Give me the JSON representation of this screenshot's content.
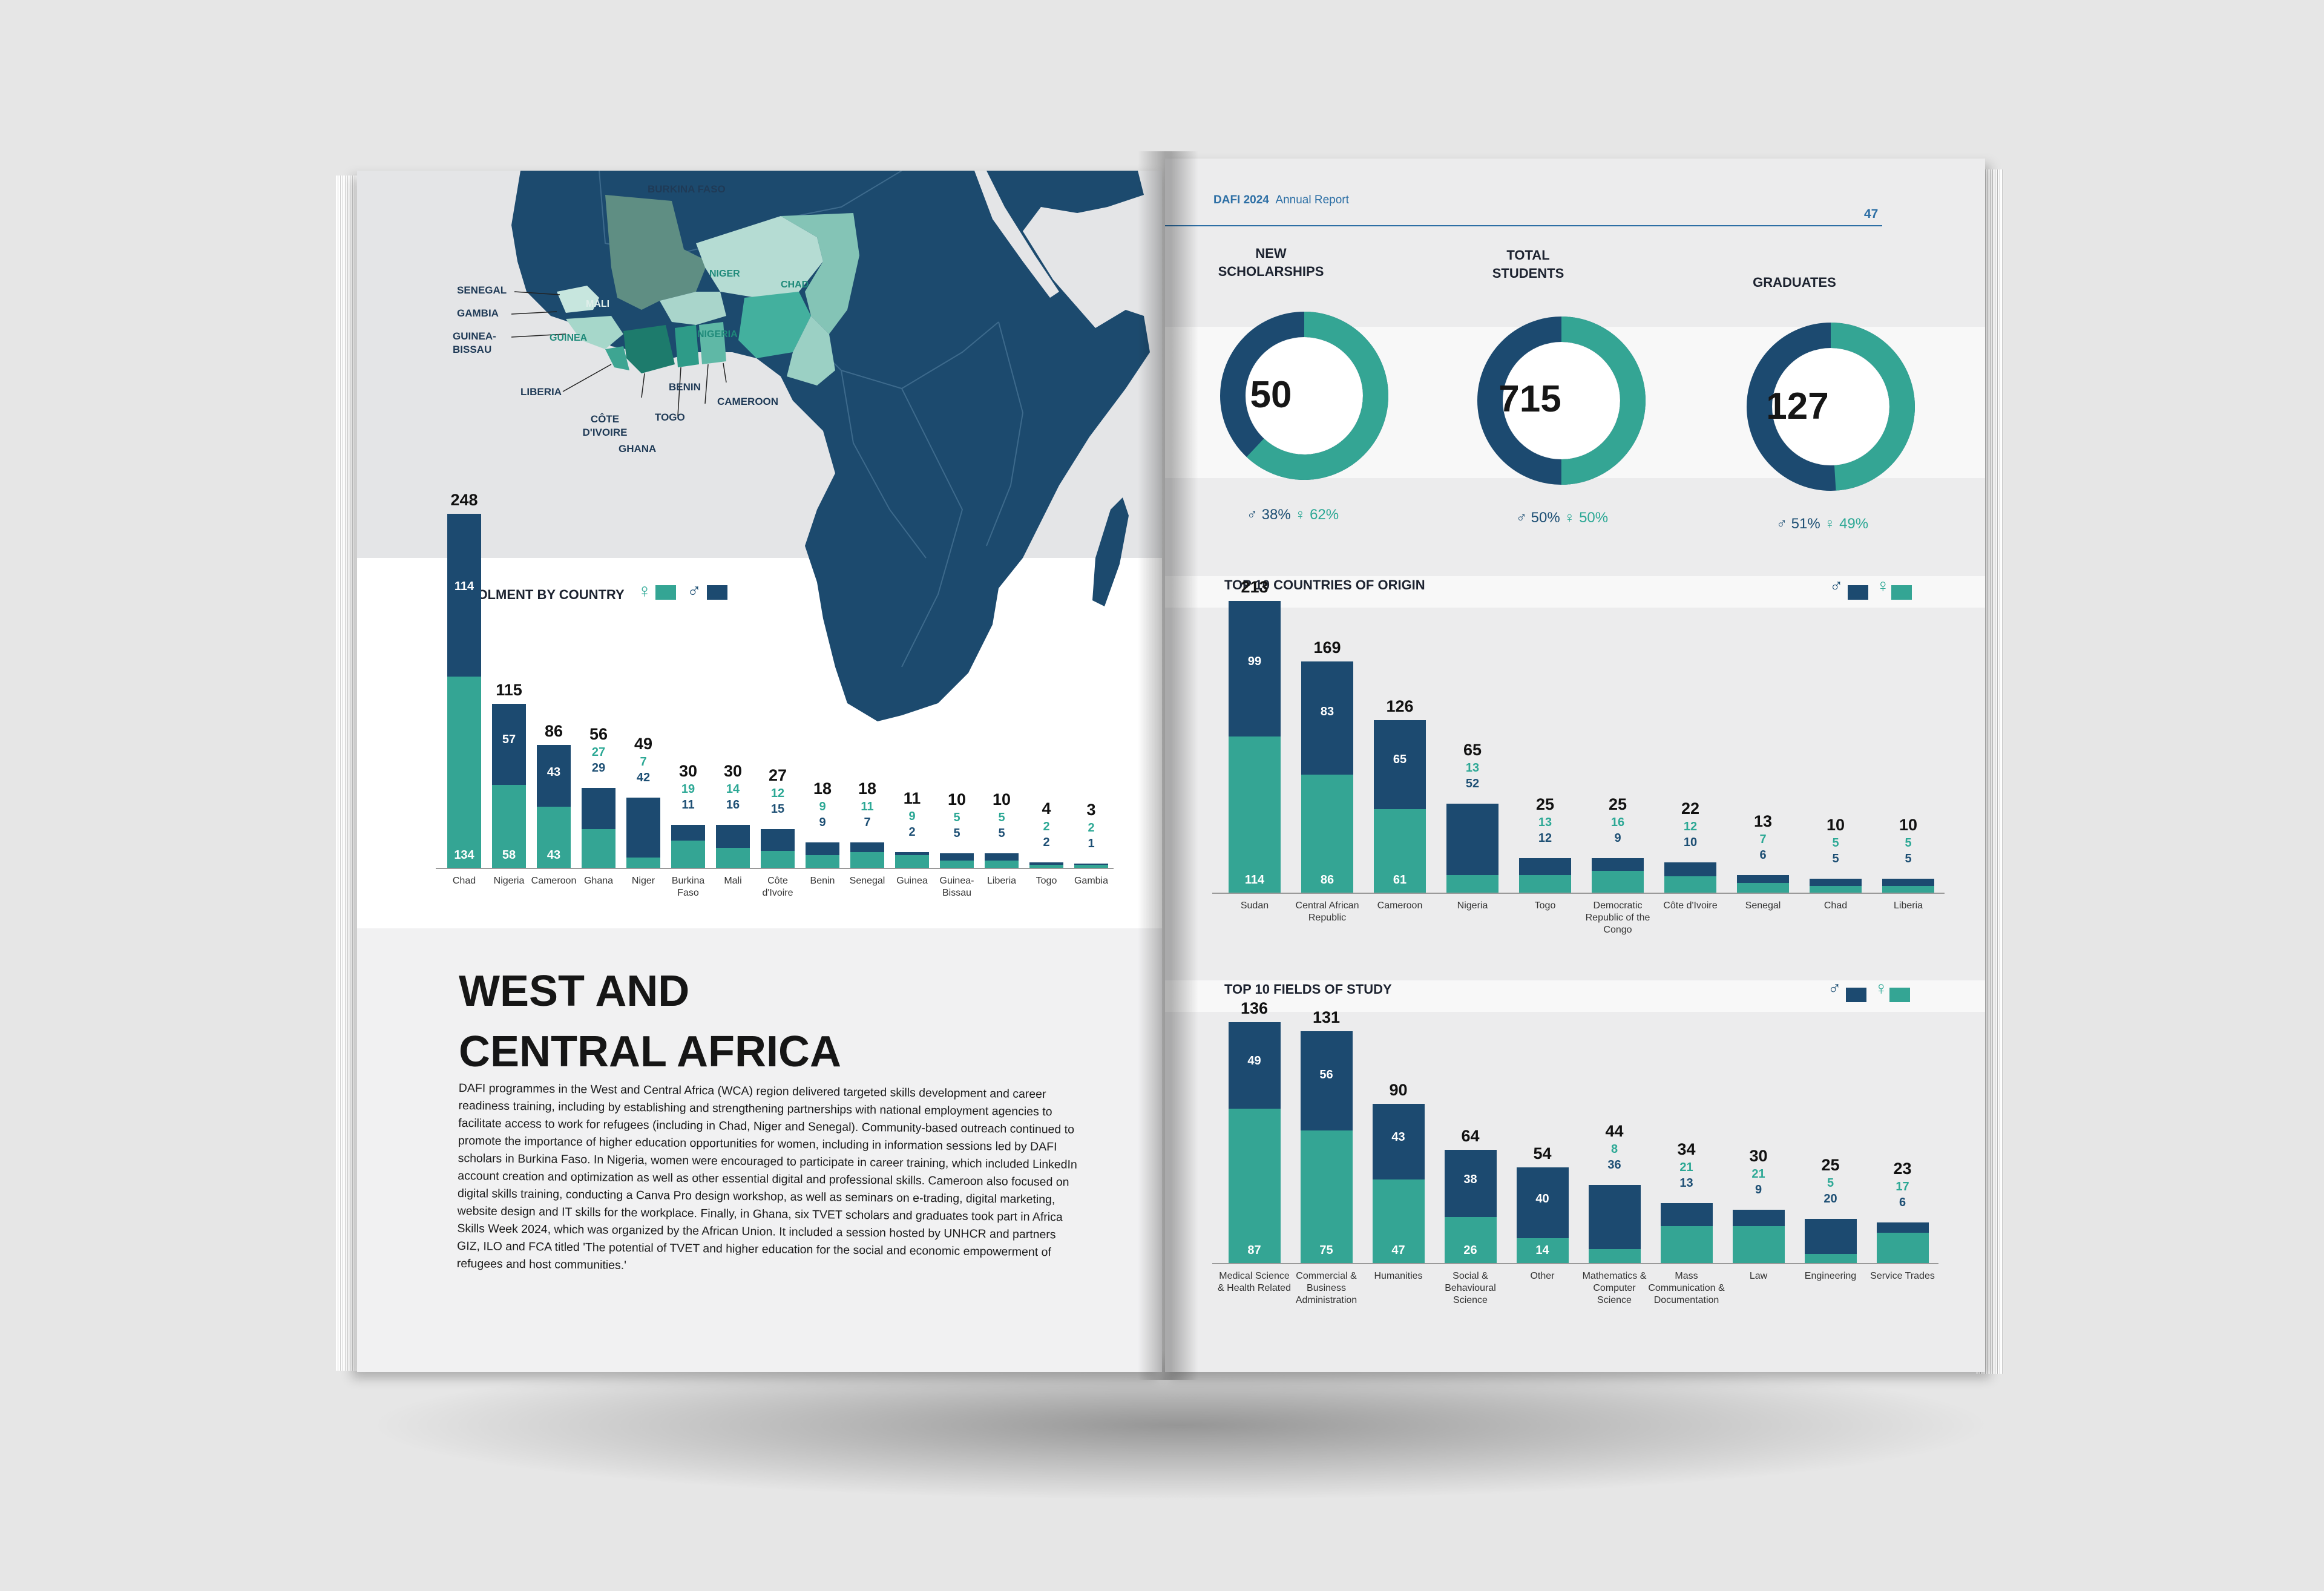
{
  "colors": {
    "navy": "#1c4a70",
    "teal": "#34a594",
    "map_ocean_bg": "#e4e5e7"
  },
  "map": {
    "labels": [
      "BURKINA FASO",
      "SENEGAL",
      "GAMBIA",
      "GUINEA-BISSAU",
      "LIBERIA",
      "CÔTE D'IVOIRE",
      "GHANA",
      "TOGO",
      "BENIN",
      "CAMEROON"
    ],
    "in_map_labels": [
      "MALI",
      "NIGER",
      "CHAD",
      "NIGERIA",
      "GUINEA"
    ]
  },
  "enrolment": {
    "title": "ENROLMENT BY COUNTRY",
    "legend": {
      "female_symbol": "♀",
      "male_symbol": "♂"
    }
  },
  "heading": {
    "line1": "WEST AND",
    "line2": "CENTRAL AFRICA"
  },
  "body_text": "DAFI programmes in the West and Central Africa (WCA) region delivered targeted skills development and career readiness training, including by establishing and strengthening partnerships with national employment agencies to facilitate access to work for refugees (including in Chad, Niger and Senegal). Community-based outreach continued to promote the importance of higher education opportunities for women, including in information sessions led by DAFI scholars in Burkina Faso. In Nigeria, women were encouraged to participate in career training, which included LinkedIn account creation and optimization as well as other essential digital and professional skills. Cameroon also focused on digital skills training, conducting a Canva Pro design workshop, as well as seminars on e-trading, digital marketing, website design and IT skills for the workplace. Finally, in Ghana, six TVET scholars and graduates took part in Africa Skills Week 2024, which was organized by the African Union. It included a session hosted by UNHCR and partners GIZ, ILO and FCA titled 'The potential of TVET and higher education for the social and economic empowerment of refugees and host communities.'",
  "header": {
    "brand": "DAFI 2024",
    "report": "Annual Report",
    "page_number": "47"
  },
  "stats": [
    {
      "title_line1": "NEW",
      "title_line2": "SCHOLARSHIPS",
      "value": "50",
      "male_pct": "38%",
      "female_pct": "62%",
      "male": 0.38,
      "female": 0.62
    },
    {
      "title_line1": "TOTAL",
      "title_line2": "STUDENTS",
      "value": "715",
      "male_pct": "50%",
      "female_pct": "50%",
      "male": 0.5,
      "female": 0.5
    },
    {
      "title_line1": "",
      "title_line2": "GRADUATES",
      "value": "127",
      "male_pct": "51%",
      "female_pct": "49%",
      "male": 0.51,
      "female": 0.49
    }
  ],
  "origin": {
    "title": "TOP 10 COUNTRIES OF ORIGIN"
  },
  "fields": {
    "title": "TOP 10 FIELDS OF STUDY"
  },
  "chart_data": [
    {
      "type": "bar",
      "title": "ENROLMENT BY COUNTRY",
      "stacked": true,
      "categories": [
        "Chad",
        "Nigeria",
        "Cameroon",
        "Ghana",
        "Niger",
        "Burkina Faso",
        "Mali",
        "Côte d'Ivoire",
        "Benin",
        "Senegal",
        "Guinea",
        "Guinea-Bissau",
        "Liberia",
        "Togo",
        "Gambia"
      ],
      "totals": [
        248,
        115,
        86,
        56,
        49,
        30,
        30,
        27,
        18,
        18,
        11,
        10,
        10,
        4,
        3
      ],
      "series": [
        {
          "name": "Female",
          "values": [
            134,
            58,
            43,
            27,
            7,
            19,
            14,
            12,
            9,
            11,
            9,
            5,
            5,
            2,
            2
          ]
        },
        {
          "name": "Male",
          "values": [
            114,
            57,
            43,
            29,
            42,
            11,
            16,
            15,
            9,
            7,
            2,
            5,
            5,
            2,
            1
          ]
        }
      ],
      "ylim": [
        0,
        248
      ]
    },
    {
      "type": "bar",
      "title": "TOP 10 COUNTRIES OF ORIGIN",
      "stacked": true,
      "categories": [
        "Sudan",
        "Central African Republic",
        "Cameroon",
        "Nigeria",
        "Togo",
        "Democratic Republic of the Congo",
        "Côte d'Ivoire",
        "Senegal",
        "Chad",
        "Liberia"
      ],
      "totals": [
        213,
        169,
        126,
        65,
        25,
        25,
        22,
        13,
        10,
        10
      ],
      "series": [
        {
          "name": "Male",
          "values": [
            99,
            83,
            65,
            52,
            12,
            9,
            10,
            6,
            5,
            5
          ]
        },
        {
          "name": "Female",
          "values": [
            114,
            86,
            61,
            13,
            13,
            16,
            12,
            7,
            5,
            5
          ]
        }
      ],
      "ylim": [
        0,
        213
      ]
    },
    {
      "type": "bar",
      "title": "TOP 10 FIELDS OF STUDY",
      "stacked": true,
      "categories": [
        "Medical Science & Health Related",
        "Commercial & Business Administration",
        "Humanities",
        "Social & Behavioural Science",
        "Other",
        "Mathematics & Computer Science",
        "Mass Communication & Documentation",
        "Law",
        "Engineering",
        "Service Trades"
      ],
      "totals": [
        136,
        131,
        90,
        64,
        54,
        44,
        34,
        30,
        25,
        23
      ],
      "series": [
        {
          "name": "Male",
          "values": [
            49,
            56,
            43,
            38,
            40,
            36,
            13,
            9,
            20,
            6
          ]
        },
        {
          "name": "Female",
          "values": [
            87,
            75,
            47,
            26,
            14,
            8,
            21,
            21,
            5,
            17
          ]
        }
      ],
      "ylim": [
        0,
        136
      ]
    }
  ]
}
